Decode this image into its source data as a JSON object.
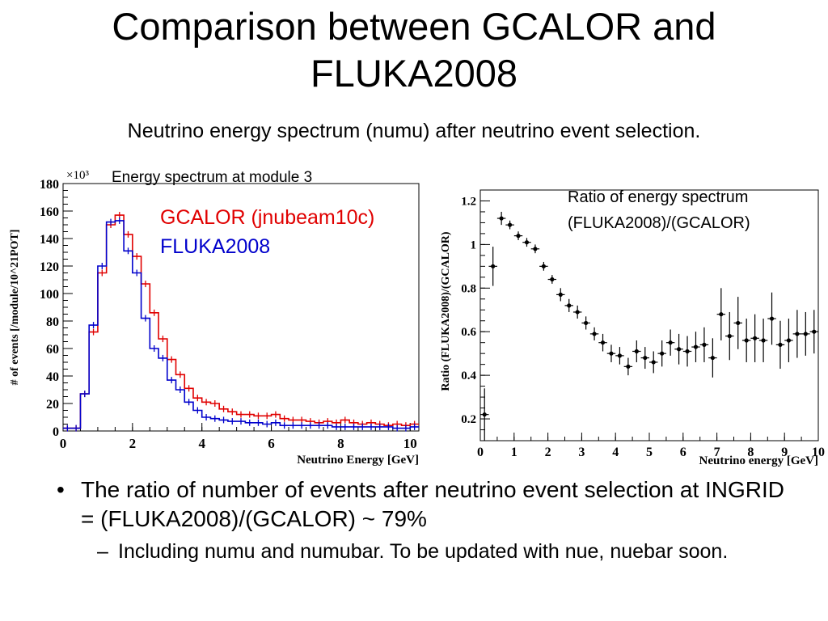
{
  "slide": {
    "title_line1": "Comparison between GCALOR and",
    "title_line2": "FLUKA2008",
    "subtitle": "Neutrino energy spectrum (numu) after neutrino event selection.",
    "bullets": [
      {
        "text": "The ratio of number of events after neutrino event selection at INGRID = (FLUKA2008)/(GCALOR) ~ 79%",
        "sub": [
          {
            "text": "Including numu and numubar. To be updated with nue, nuebar soon."
          }
        ]
      }
    ],
    "bullet_mark": "•",
    "sub_mark": "–"
  },
  "colors": {
    "gcalor": "#e00000",
    "fluka": "#0000cc",
    "points": "#000000"
  },
  "chart_data": [
    {
      "type": "line",
      "title": "Energy spectrum at module 3",
      "xlabel": "Neutrino Energy [GeV]",
      "ylabel": "# of events [/module/10^21POT]",
      "y_multiplier": "×10³",
      "xlim": [
        0,
        10.25
      ],
      "ylim": [
        0,
        180
      ],
      "xticks": [
        0,
        2,
        4,
        6,
        8,
        10
      ],
      "yticks": [
        0,
        20,
        40,
        60,
        80,
        100,
        120,
        140,
        160,
        180
      ],
      "bin_width": 0.25,
      "x": [
        0.125,
        0.375,
        0.625,
        0.875,
        1.125,
        1.375,
        1.625,
        1.875,
        2.125,
        2.375,
        2.625,
        2.875,
        3.125,
        3.375,
        3.625,
        3.875,
        4.125,
        4.375,
        4.625,
        4.875,
        5.125,
        5.375,
        5.625,
        5.875,
        6.125,
        6.375,
        6.625,
        6.875,
        7.125,
        7.375,
        7.625,
        7.875,
        8.125,
        8.375,
        8.625,
        8.875,
        9.125,
        9.375,
        9.625,
        9.875,
        10.125
      ],
      "series": [
        {
          "name": "GCALOR (jnubeam10c)",
          "values": [
            2,
            2,
            27,
            72,
            115,
            150,
            157,
            143,
            127,
            107,
            86,
            67,
            52,
            41,
            31,
            24,
            21,
            20,
            16,
            14,
            12,
            12,
            11,
            11,
            12,
            9,
            8,
            8,
            7,
            6,
            7,
            6,
            8,
            6,
            5,
            6,
            5,
            4,
            5,
            4,
            5
          ]
        },
        {
          "name": "FLUKA2008",
          "values": [
            2,
            2,
            27,
            77,
            120,
            152,
            153,
            131,
            115,
            82,
            60,
            53,
            37,
            30,
            21,
            15,
            10,
            9,
            8,
            7,
            7,
            6,
            6,
            5,
            6,
            4,
            4,
            4,
            4,
            4,
            4,
            3,
            3,
            3,
            3,
            3,
            3,
            3,
            2,
            2,
            3
          ]
        }
      ],
      "legend": "top-right"
    },
    {
      "type": "scatter",
      "title": "Ratio of energy spectrum (FLUKA2008)/(GCALOR)",
      "title_line1": "Ratio of energy spectrum",
      "title_line2": "(FLUKA2008)/(GCALOR)",
      "xlabel": "Neutrino energy [GeV]",
      "ylabel": "Ratio (FLUKA2008)/(GCALOR)",
      "xlim": [
        0,
        10
      ],
      "ylim": [
        0.1,
        1.25
      ],
      "xticks": [
        0,
        1,
        2,
        3,
        4,
        5,
        6,
        7,
        8,
        9,
        10
      ],
      "yticks": [
        0.2,
        0.4,
        0.6,
        0.8,
        1,
        1.2
      ],
      "points": [
        {
          "x": 0.125,
          "y": 0.22,
          "err": 0.12
        },
        {
          "x": 0.375,
          "y": 0.9,
          "err": 0.09
        },
        {
          "x": 0.625,
          "y": 1.12,
          "err": 0.03
        },
        {
          "x": 0.875,
          "y": 1.09,
          "err": 0.02
        },
        {
          "x": 1.125,
          "y": 1.04,
          "err": 0.02
        },
        {
          "x": 1.375,
          "y": 1.01,
          "err": 0.02
        },
        {
          "x": 1.625,
          "y": 0.98,
          "err": 0.02
        },
        {
          "x": 1.875,
          "y": 0.9,
          "err": 0.02
        },
        {
          "x": 2.125,
          "y": 0.84,
          "err": 0.02
        },
        {
          "x": 2.375,
          "y": 0.77,
          "err": 0.03
        },
        {
          "x": 2.625,
          "y": 0.72,
          "err": 0.03
        },
        {
          "x": 2.875,
          "y": 0.69,
          "err": 0.03
        },
        {
          "x": 3.125,
          "y": 0.64,
          "err": 0.03
        },
        {
          "x": 3.375,
          "y": 0.59,
          "err": 0.03
        },
        {
          "x": 3.625,
          "y": 0.55,
          "err": 0.04
        },
        {
          "x": 3.875,
          "y": 0.5,
          "err": 0.04
        },
        {
          "x": 4.125,
          "y": 0.49,
          "err": 0.04
        },
        {
          "x": 4.375,
          "y": 0.44,
          "err": 0.04
        },
        {
          "x": 4.625,
          "y": 0.51,
          "err": 0.05
        },
        {
          "x": 4.875,
          "y": 0.48,
          "err": 0.05
        },
        {
          "x": 5.125,
          "y": 0.46,
          "err": 0.05
        },
        {
          "x": 5.375,
          "y": 0.5,
          "err": 0.06
        },
        {
          "x": 5.625,
          "y": 0.55,
          "err": 0.06
        },
        {
          "x": 5.875,
          "y": 0.52,
          "err": 0.07
        },
        {
          "x": 6.125,
          "y": 0.51,
          "err": 0.07
        },
        {
          "x": 6.375,
          "y": 0.53,
          "err": 0.07
        },
        {
          "x": 6.625,
          "y": 0.54,
          "err": 0.08
        },
        {
          "x": 6.875,
          "y": 0.48,
          "err": 0.09
        },
        {
          "x": 7.125,
          "y": 0.68,
          "err": 0.12
        },
        {
          "x": 7.375,
          "y": 0.58,
          "err": 0.11
        },
        {
          "x": 7.625,
          "y": 0.64,
          "err": 0.12
        },
        {
          "x": 7.875,
          "y": 0.56,
          "err": 0.1
        },
        {
          "x": 8.125,
          "y": 0.57,
          "err": 0.11
        },
        {
          "x": 8.375,
          "y": 0.56,
          "err": 0.1
        },
        {
          "x": 8.625,
          "y": 0.66,
          "err": 0.12
        },
        {
          "x": 8.875,
          "y": 0.54,
          "err": 0.11
        },
        {
          "x": 9.125,
          "y": 0.56,
          "err": 0.1
        },
        {
          "x": 9.375,
          "y": 0.59,
          "err": 0.11
        },
        {
          "x": 9.625,
          "y": 0.59,
          "err": 0.1
        },
        {
          "x": 9.875,
          "y": 0.6,
          "err": 0.1
        }
      ]
    }
  ]
}
